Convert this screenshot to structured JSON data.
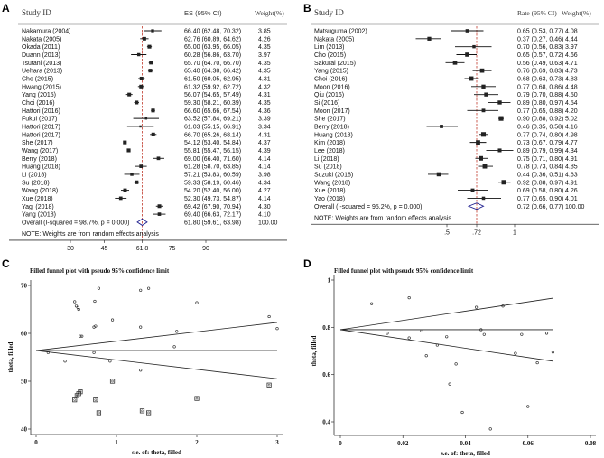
{
  "chart_data": [
    {
      "panel": "A",
      "type": "forest",
      "headers": {
        "study": "Study ID",
        "es": "ES (95% CI)",
        "weight": "Weight(%)"
      },
      "rows": [
        {
          "study": "Nakamura (2004)",
          "es": 66.4,
          "lo": 62.48,
          "hi": 70.32,
          "ci_text": "66.40 (62.48, 70.32)",
          "weight": "3.85"
        },
        {
          "study": "Nakata (2005)",
          "es": 62.76,
          "lo": 60.89,
          "hi": 64.62,
          "ci_text": "62.76 (60.89, 64.62)",
          "weight": "4.26"
        },
        {
          "study": "Okada (2011)",
          "es": 65.0,
          "lo": 63.95,
          "hi": 66.05,
          "ci_text": "65.00 (63.95, 66.05)",
          "weight": "4.35"
        },
        {
          "study": "Duann (2013)",
          "es": 60.28,
          "lo": 56.86,
          "hi": 63.7,
          "ci_text": "60.28 (56.86, 63.70)",
          "weight": "3.97"
        },
        {
          "study": "Tsutani (2013)",
          "es": 65.7,
          "lo": 64.7,
          "hi": 66.7,
          "ci_text": "65.70 (64.70, 66.70)",
          "weight": "4.35"
        },
        {
          "study": "Uehara (2013)",
          "es": 65.4,
          "lo": 64.38,
          "hi": 66.42,
          "ci_text": "65.40 (64.38, 66.42)",
          "weight": "4.35"
        },
        {
          "study": "Cho (2015)",
          "es": 61.5,
          "lo": 60.05,
          "hi": 62.95,
          "ci_text": "61.50 (60.05, 62.95)",
          "weight": "4.31"
        },
        {
          "study": "Hwang (2015)",
          "es": 61.32,
          "lo": 59.92,
          "hi": 62.72,
          "ci_text": "61.32 (59.92, 62.72)",
          "weight": "4.32"
        },
        {
          "study": "Yang (2015)",
          "es": 56.07,
          "lo": 54.65,
          "hi": 57.49,
          "ci_text": "56.07 (54.65, 57.49)",
          "weight": "4.31"
        },
        {
          "study": "Choi (2016)",
          "es": 59.3,
          "lo": 58.21,
          "hi": 60.39,
          "ci_text": "59.30 (58.21, 60.39)",
          "weight": "4.35"
        },
        {
          "study": "Hattori (2016)",
          "es": 66.6,
          "lo": 65.66,
          "hi": 67.54,
          "ci_text": "66.60 (65.66, 67.54)",
          "weight": "4.36"
        },
        {
          "study": "Fukui (2017)",
          "es": 63.52,
          "lo": 57.84,
          "hi": 69.21,
          "ci_text": "63.52 (57.84, 69.21)",
          "weight": "3.39"
        },
        {
          "study": "Hattori (2017)",
          "es": 61.03,
          "lo": 55.15,
          "hi": 66.91,
          "ci_text": "61.03 (55.15, 66.91)",
          "weight": "3.34"
        },
        {
          "study": "Hattori (2017)",
          "es": 66.7,
          "lo": 65.26,
          "hi": 68.14,
          "ci_text": "66.70 (65.26, 68.14)",
          "weight": "4.31"
        },
        {
          "study": "She (2017)",
          "es": 54.12,
          "lo": 53.4,
          "hi": 54.84,
          "ci_text": "54.12 (53.40, 54.84)",
          "weight": "4.37"
        },
        {
          "study": "Wang (2017)",
          "es": 55.81,
          "lo": 55.47,
          "hi": 56.15,
          "ci_text": "55.81 (55.47, 56.15)",
          "weight": "4.39"
        },
        {
          "study": "Berry (2018)",
          "es": 69.0,
          "lo": 66.4,
          "hi": 71.6,
          "ci_text": "69.00 (66.40, 71.60)",
          "weight": "4.14"
        },
        {
          "study": "Huang (2018)",
          "es": 61.28,
          "lo": 58.7,
          "hi": 63.85,
          "ci_text": "61.28 (58.70, 63.85)",
          "weight": "4.14"
        },
        {
          "study": "Li (2018)",
          "es": 57.21,
          "lo": 53.83,
          "hi": 60.59,
          "ci_text": "57.21 (53.83, 60.59)",
          "weight": "3.98"
        },
        {
          "study": "Su (2018)",
          "es": 59.33,
          "lo": 58.19,
          "hi": 60.46,
          "ci_text": "59.33 (58.19, 60.46)",
          "weight": "4.34"
        },
        {
          "study": "Wang (2018)",
          "es": 54.2,
          "lo": 52.4,
          "hi": 56.0,
          "ci_text": "54.20 (52.40, 56.00)",
          "weight": "4.27"
        },
        {
          "study": "Xue (2018)",
          "es": 52.3,
          "lo": 49.73,
          "hi": 54.87,
          "ci_text": "52.30 (49.73, 54.87)",
          "weight": "4.14"
        },
        {
          "study": "Yagi (2018)",
          "es": 69.42,
          "lo": 67.9,
          "hi": 70.94,
          "ci_text": "69.42 (67.90, 70.94)",
          "weight": "4.30"
        },
        {
          "study": "Yang (2018)",
          "es": 69.4,
          "lo": 66.63,
          "hi": 72.17,
          "ci_text": "69.40 (66.63, 72.17)",
          "weight": "4.10"
        }
      ],
      "overall": {
        "label": "Overall  (I-squared = 98.7%, p = 0.000)",
        "es": 61.8,
        "lo": 59.61,
        "hi": 63.98,
        "ci_text": "61.80 (59.61, 63.98)",
        "weight": "100.00"
      },
      "note": "NOTE: Weights are from random effects analysis",
      "xticks": [
        30,
        45,
        61.8,
        75,
        90
      ],
      "xlim": [
        30,
        90
      ]
    },
    {
      "panel": "B",
      "type": "forest",
      "headers": {
        "study": "Study ID",
        "es": "Rate (95% CI)",
        "weight": "Weight(%)"
      },
      "rows": [
        {
          "study": "Matsuguma (2002)",
          "es": 0.65,
          "lo": 0.53,
          "hi": 0.77,
          "ci_text": "0.65 (0.53, 0.77)",
          "weight": "4.08"
        },
        {
          "study": "Nakata (2005)",
          "es": 0.37,
          "lo": 0.27,
          "hi": 0.46,
          "ci_text": "0.37 (0.27, 0.46)",
          "weight": "4.44"
        },
        {
          "study": "Lim (2013)",
          "es": 0.7,
          "lo": 0.56,
          "hi": 0.83,
          "ci_text": "0.70 (0.56, 0.83)",
          "weight": "3.97"
        },
        {
          "study": "Cho (2015)",
          "es": 0.65,
          "lo": 0.57,
          "hi": 0.72,
          "ci_text": "0.65 (0.57, 0.72)",
          "weight": "4.66"
        },
        {
          "study": "Sakurai (2015)",
          "es": 0.56,
          "lo": 0.49,
          "hi": 0.63,
          "ci_text": "0.56 (0.49, 0.63)",
          "weight": "4.71"
        },
        {
          "study": "Yang (2015)",
          "es": 0.76,
          "lo": 0.69,
          "hi": 0.83,
          "ci_text": "0.76 (0.69, 0.83)",
          "weight": "4.73"
        },
        {
          "study": "Choi (2016)",
          "es": 0.68,
          "lo": 0.63,
          "hi": 0.73,
          "ci_text": "0.68 (0.63, 0.73)",
          "weight": "4.83"
        },
        {
          "study": "Moon (2016)",
          "es": 0.77,
          "lo": 0.68,
          "hi": 0.86,
          "ci_text": "0.77 (0.68, 0.86)",
          "weight": "4.48"
        },
        {
          "study": "Qiu (2016)",
          "es": 0.79,
          "lo": 0.7,
          "hi": 0.88,
          "ci_text": "0.79 (0.70, 0.88)",
          "weight": "4.50"
        },
        {
          "study": "Si (2016)",
          "es": 0.89,
          "lo": 0.8,
          "hi": 0.97,
          "ci_text": "0.89 (0.80, 0.97)",
          "weight": "4.54"
        },
        {
          "study": "Moon (2017)",
          "es": 0.77,
          "lo": 0.65,
          "hi": 0.88,
          "ci_text": "0.77 (0.65, 0.88)",
          "weight": "4.20"
        },
        {
          "study": "She (2017)",
          "es": 0.9,
          "lo": 0.88,
          "hi": 0.92,
          "ci_text": "0.90 (0.88, 0.92)",
          "weight": "5.02"
        },
        {
          "study": "Berry (2018)",
          "es": 0.46,
          "lo": 0.35,
          "hi": 0.58,
          "ci_text": "0.46 (0.35, 0.58)",
          "weight": "4.16"
        },
        {
          "study": "Huang (2018)",
          "es": 0.77,
          "lo": 0.74,
          "hi": 0.8,
          "ci_text": "0.77 (0.74, 0.80)",
          "weight": "4.98"
        },
        {
          "study": "Kim (2018)",
          "es": 0.73,
          "lo": 0.67,
          "hi": 0.79,
          "ci_text": "0.73 (0.67, 0.79)",
          "weight": "4.77"
        },
        {
          "study": "Lee (2018)",
          "es": 0.89,
          "lo": 0.79,
          "hi": 0.99,
          "ci_text": "0.89 (0.79, 0.99)",
          "weight": "4.34"
        },
        {
          "study": "Li (2018)",
          "es": 0.75,
          "lo": 0.71,
          "hi": 0.8,
          "ci_text": "0.75 (0.71, 0.80)",
          "weight": "4.91"
        },
        {
          "study": "Su (2018)",
          "es": 0.78,
          "lo": 0.73,
          "hi": 0.84,
          "ci_text": "0.78 (0.73, 0.84)",
          "weight": "4.85"
        },
        {
          "study": "Suzuki (2018)",
          "es": 0.44,
          "lo": 0.36,
          "hi": 0.51,
          "ci_text": "0.44 (0.36, 0.51)",
          "weight": "4.63"
        },
        {
          "study": "Wang (2018)",
          "es": 0.92,
          "lo": 0.88,
          "hi": 0.97,
          "ci_text": "0.92 (0.88, 0.97)",
          "weight": "4.91"
        },
        {
          "study": "Xue (2018)",
          "es": 0.69,
          "lo": 0.58,
          "hi": 0.8,
          "ci_text": "0.69 (0.58, 0.80)",
          "weight": "4.26"
        },
        {
          "study": "Yao (2018)",
          "es": 0.77,
          "lo": 0.65,
          "hi": 0.9,
          "ci_text": "0.77 (0.65, 0.90)",
          "weight": "4.01"
        }
      ],
      "overall": {
        "label": "Overall  (I-squared = 95.2%, p = 0.000)",
        "es": 0.72,
        "lo": 0.66,
        "hi": 0.77,
        "ci_text": "0.72 (0.66, 0.77)",
        "weight": "100.00"
      },
      "note": "NOTE: Weights are from random effects analysis",
      "xticks": [
        0.5,
        0.72,
        1
      ],
      "xtick_labels": [
        ".5",
        ".72",
        "1"
      ],
      "xlim": [
        0.3,
        1.1
      ]
    },
    {
      "panel": "C",
      "type": "scatter",
      "title": "Filled funnel plot with pseudo 95% confidence limit",
      "xlabel": "s.e. of: theta, filled",
      "ylabel": "theta, filled",
      "xlim": [
        0,
        3
      ],
      "ylim": [
        40,
        70
      ],
      "xticks": [
        0,
        1,
        2,
        3
      ],
      "yticks": [
        40,
        50,
        60,
        70
      ],
      "center": 56.4,
      "limit_se": 3,
      "observed": [
        [
          0.48,
          66.6
        ],
        [
          0.5,
          65.7
        ],
        [
          0.52,
          65.4
        ],
        [
          0.53,
          65.0
        ],
        [
          0.78,
          69.4
        ],
        [
          0.73,
          66.7
        ],
        [
          0.95,
          62.8
        ],
        [
          0.72,
          61.3
        ],
        [
          0.74,
          61.5
        ],
        [
          0.55,
          59.4
        ],
        [
          0.57,
          59.4
        ],
        [
          1.3,
          69.0
        ],
        [
          1.4,
          69.4
        ],
        [
          1.3,
          61.3
        ],
        [
          2.0,
          66.4
        ],
        [
          1.75,
          60.4
        ],
        [
          1.72,
          57.2
        ],
        [
          2.9,
          63.5
        ],
        [
          3.0,
          61.0
        ],
        [
          0.15,
          56.0
        ],
        [
          0.36,
          54.2
        ],
        [
          0.72,
          56.0
        ],
        [
          0.92,
          54.2
        ],
        [
          1.3,
          52.3
        ]
      ],
      "filled": [
        [
          0.48,
          46.1
        ],
        [
          0.51,
          47.0
        ],
        [
          0.53,
          47.4
        ],
        [
          0.55,
          47.8
        ],
        [
          0.74,
          46.1
        ],
        [
          0.95,
          50.0
        ],
        [
          0.78,
          43.4
        ],
        [
          1.32,
          43.8
        ],
        [
          1.4,
          43.4
        ],
        [
          2.0,
          46.4
        ],
        [
          2.9,
          49.2
        ]
      ]
    },
    {
      "panel": "D",
      "type": "scatter",
      "title": "Filled funnel plot with pseudo 95% confidence limit",
      "xlabel": "s.e. of: theta, filled",
      "ylabel": "theta, filled",
      "xlim": [
        0,
        0.08
      ],
      "ylim": [
        0.4,
        1
      ],
      "xticks": [
        0,
        0.02,
        0.04,
        0.06,
        0.08
      ],
      "yticks": [
        0.4,
        0.6,
        0.8,
        1
      ],
      "center": 0.79,
      "limit_se": 0.068,
      "observed": [
        [
          0.01,
          0.9
        ],
        [
          0.015,
          0.775
        ],
        [
          0.022,
          0.925
        ],
        [
          0.022,
          0.755
        ],
        [
          0.026,
          0.785
        ],
        [
          0.0275,
          0.68
        ],
        [
          0.031,
          0.725
        ],
        [
          0.034,
          0.76
        ],
        [
          0.035,
          0.56
        ],
        [
          0.037,
          0.645
        ],
        [
          0.039,
          0.44
        ],
        [
          0.0435,
          0.885
        ],
        [
          0.045,
          0.79
        ],
        [
          0.046,
          0.77
        ],
        [
          0.048,
          0.37
        ],
        [
          0.052,
          0.89
        ],
        [
          0.056,
          0.69
        ],
        [
          0.058,
          0.77
        ],
        [
          0.06,
          0.465
        ],
        [
          0.063,
          0.65
        ],
        [
          0.066,
          0.775
        ],
        [
          0.068,
          0.695
        ]
      ],
      "filled": []
    }
  ],
  "colors": {
    "ref_line": "#c0392b",
    "diamond": "#1f1f8f",
    "ink": "#111111"
  }
}
